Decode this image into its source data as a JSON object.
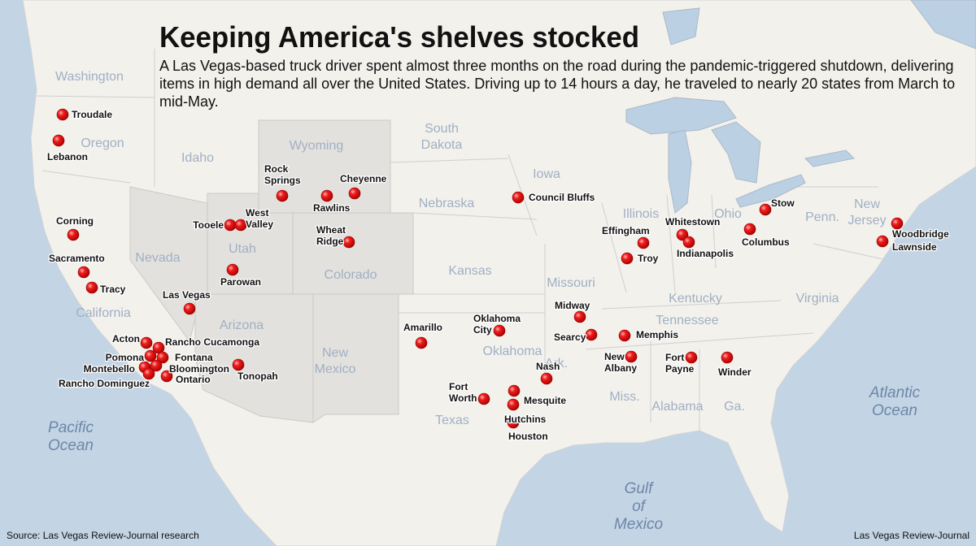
{
  "header": {
    "title": "Keeping America's shelves stocked",
    "description": "A Las Vegas-based truck driver spent almost three months on the road during the pandemic-triggered shutdown, delivering items in high demand all over the United States. Driving up to 14 hours a day, he traveled to nearly 20 states from March to mid-May."
  },
  "footer": {
    "source": "Source: Las Vegas Review-Journal research",
    "credit": "Las Vegas Review-Journal"
  },
  "water_labels": [
    "Pacific Ocean",
    "Atlantic Ocean",
    "Gulf of Mexico"
  ],
  "state_labels": [
    "Washington",
    "Oregon",
    "Idaho",
    "Nevada",
    "California",
    "Utah",
    "Arizona",
    "Wyoming",
    "Colorado",
    "New Mexico",
    "South Dakota",
    "Nebraska",
    "Kansas",
    "Oklahoma",
    "Texas",
    "Iowa",
    "Missouri",
    "Ark.",
    "Illinois",
    "Miss.",
    "Alabama",
    "Ga.",
    "Tennessee",
    "Kentucky",
    "Ohio",
    "Penn.",
    "New Jersey",
    "Virginia"
  ],
  "cities": [
    "Troudale",
    "Lebanon",
    "Corning",
    "Sacramento",
    "Tracy",
    "Las Vegas",
    "Acton",
    "Rancho Cucamonga",
    "Pomona",
    "Fontana",
    "Montebello",
    "Bloomington",
    "Rancho Dominguez",
    "Ontario",
    "Tonopah",
    "Rock Springs",
    "Rawlins",
    "Cheyenne",
    "Tooele",
    "West Valley",
    "Parowan",
    "Wheat Ridge",
    "Council Bluffs",
    "Effingham",
    "Troy",
    "Whitestown",
    "Indianapolis",
    "Stow",
    "Columbus",
    "Woodbridge",
    "Lawnside",
    "Amarillo",
    "Oklahoma City",
    "Midway",
    "Searcy",
    "Memphis",
    "New Albany",
    "Fort Payne",
    "Winder",
    "Nash",
    "Fort Worth",
    "Mesquite",
    "Hutchins",
    "Houston"
  ]
}
